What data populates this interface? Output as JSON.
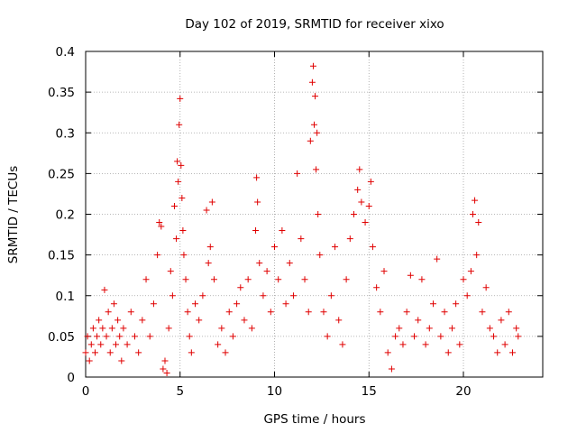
{
  "chart_data": {
    "type": "scatter",
    "title": "Day 102 of 2019, SRMTID for receiver xixo",
    "xlabel": "GPS time / hours",
    "ylabel": "SRMTID / TECUs",
    "xlim": [
      0,
      24.2
    ],
    "ylim": [
      0,
      0.4
    ],
    "xticks": [
      0,
      5,
      10,
      15,
      20
    ],
    "xtick_labels": [
      "0",
      "5",
      "10",
      "15",
      "20"
    ],
    "yticks": [
      0,
      0.05,
      0.1,
      0.15,
      0.2,
      0.25,
      0.3,
      0.35,
      0.4
    ],
    "ytick_labels": [
      "0",
      "0.05",
      "0.1",
      "0.15",
      "0.2",
      "0.25",
      "0.3",
      "0.35",
      "0.4"
    ],
    "grid": true,
    "marker": "+",
    "color": "#e00000",
    "series": [
      {
        "name": "SRMTID",
        "points": [
          [
            0.0,
            0.03
          ],
          [
            0.1,
            0.05
          ],
          [
            0.2,
            0.02
          ],
          [
            0.3,
            0.04
          ],
          [
            0.4,
            0.06
          ],
          [
            0.5,
            0.03
          ],
          [
            0.6,
            0.05
          ],
          [
            0.7,
            0.07
          ],
          [
            0.8,
            0.04
          ],
          [
            0.9,
            0.06
          ],
          [
            1.0,
            0.107
          ],
          [
            1.1,
            0.05
          ],
          [
            1.2,
            0.08
          ],
          [
            1.3,
            0.03
          ],
          [
            1.4,
            0.06
          ],
          [
            1.5,
            0.09
          ],
          [
            1.6,
            0.04
          ],
          [
            1.7,
            0.07
          ],
          [
            1.8,
            0.05
          ],
          [
            1.9,
            0.02
          ],
          [
            2.0,
            0.06
          ],
          [
            2.2,
            0.04
          ],
          [
            2.4,
            0.08
          ],
          [
            2.6,
            0.05
          ],
          [
            2.8,
            0.03
          ],
          [
            3.0,
            0.07
          ],
          [
            3.2,
            0.12
          ],
          [
            3.4,
            0.05
          ],
          [
            3.6,
            0.09
          ],
          [
            3.8,
            0.15
          ],
          [
            3.9,
            0.19
          ],
          [
            4.0,
            0.185
          ],
          [
            4.1,
            0.01
          ],
          [
            4.2,
            0.02
          ],
          [
            4.3,
            0.005
          ],
          [
            4.4,
            0.06
          ],
          [
            4.5,
            0.13
          ],
          [
            4.6,
            0.1
          ],
          [
            4.7,
            0.21
          ],
          [
            4.8,
            0.17
          ],
          [
            4.85,
            0.265
          ],
          [
            4.9,
            0.24
          ],
          [
            4.95,
            0.31
          ],
          [
            5.0,
            0.342
          ],
          [
            5.05,
            0.26
          ],
          [
            5.1,
            0.22
          ],
          [
            5.15,
            0.18
          ],
          [
            5.2,
            0.15
          ],
          [
            5.3,
            0.12
          ],
          [
            5.4,
            0.08
          ],
          [
            5.5,
            0.05
          ],
          [
            5.6,
            0.03
          ],
          [
            5.8,
            0.09
          ],
          [
            6.0,
            0.07
          ],
          [
            6.2,
            0.1
          ],
          [
            6.4,
            0.205
          ],
          [
            6.5,
            0.14
          ],
          [
            6.6,
            0.16
          ],
          [
            6.7,
            0.215
          ],
          [
            6.8,
            0.12
          ],
          [
            7.0,
            0.04
          ],
          [
            7.2,
            0.06
          ],
          [
            7.4,
            0.03
          ],
          [
            7.6,
            0.08
          ],
          [
            7.8,
            0.05
          ],
          [
            8.0,
            0.09
          ],
          [
            8.2,
            0.11
          ],
          [
            8.4,
            0.07
          ],
          [
            8.6,
            0.12
          ],
          [
            8.8,
            0.06
          ],
          [
            9.0,
            0.18
          ],
          [
            9.05,
            0.245
          ],
          [
            9.1,
            0.215
          ],
          [
            9.2,
            0.14
          ],
          [
            9.4,
            0.1
          ],
          [
            9.6,
            0.13
          ],
          [
            9.8,
            0.08
          ],
          [
            10.0,
            0.16
          ],
          [
            10.2,
            0.12
          ],
          [
            10.4,
            0.18
          ],
          [
            10.6,
            0.09
          ],
          [
            10.8,
            0.14
          ],
          [
            11.0,
            0.1
          ],
          [
            11.2,
            0.25
          ],
          [
            11.4,
            0.17
          ],
          [
            11.6,
            0.12
          ],
          [
            11.8,
            0.08
          ],
          [
            11.9,
            0.29
          ],
          [
            12.0,
            0.362
          ],
          [
            12.05,
            0.382
          ],
          [
            12.1,
            0.31
          ],
          [
            12.15,
            0.345
          ],
          [
            12.2,
            0.255
          ],
          [
            12.25,
            0.3
          ],
          [
            12.3,
            0.2
          ],
          [
            12.4,
            0.15
          ],
          [
            12.6,
            0.08
          ],
          [
            12.8,
            0.05
          ],
          [
            13.0,
            0.1
          ],
          [
            13.2,
            0.16
          ],
          [
            13.4,
            0.07
          ],
          [
            13.6,
            0.04
          ],
          [
            13.8,
            0.12
          ],
          [
            14.0,
            0.17
          ],
          [
            14.2,
            0.2
          ],
          [
            14.4,
            0.23
          ],
          [
            14.5,
            0.255
          ],
          [
            14.6,
            0.215
          ],
          [
            14.8,
            0.19
          ],
          [
            15.0,
            0.21
          ],
          [
            15.1,
            0.24
          ],
          [
            15.2,
            0.16
          ],
          [
            15.4,
            0.11
          ],
          [
            15.6,
            0.08
          ],
          [
            15.8,
            0.13
          ],
          [
            16.0,
            0.03
          ],
          [
            16.2,
            0.01
          ],
          [
            16.4,
            0.05
          ],
          [
            16.6,
            0.06
          ],
          [
            16.8,
            0.04
          ],
          [
            17.0,
            0.08
          ],
          [
            17.2,
            0.125
          ],
          [
            17.4,
            0.05
          ],
          [
            17.6,
            0.07
          ],
          [
            17.8,
            0.12
          ],
          [
            18.0,
            0.04
          ],
          [
            18.2,
            0.06
          ],
          [
            18.4,
            0.09
          ],
          [
            18.6,
            0.145
          ],
          [
            18.8,
            0.05
          ],
          [
            19.0,
            0.08
          ],
          [
            19.2,
            0.03
          ],
          [
            19.4,
            0.06
          ],
          [
            19.6,
            0.09
          ],
          [
            19.8,
            0.04
          ],
          [
            20.0,
            0.12
          ],
          [
            20.2,
            0.1
          ],
          [
            20.4,
            0.13
          ],
          [
            20.5,
            0.2
          ],
          [
            20.6,
            0.217
          ],
          [
            20.7,
            0.15
          ],
          [
            20.8,
            0.19
          ],
          [
            21.0,
            0.08
          ],
          [
            21.2,
            0.11
          ],
          [
            21.4,
            0.06
          ],
          [
            21.6,
            0.05
          ],
          [
            21.8,
            0.03
          ],
          [
            22.0,
            0.07
          ],
          [
            22.2,
            0.04
          ],
          [
            22.4,
            0.08
          ],
          [
            22.6,
            0.03
          ],
          [
            22.8,
            0.06
          ],
          [
            22.9,
            0.05
          ]
        ]
      }
    ]
  }
}
